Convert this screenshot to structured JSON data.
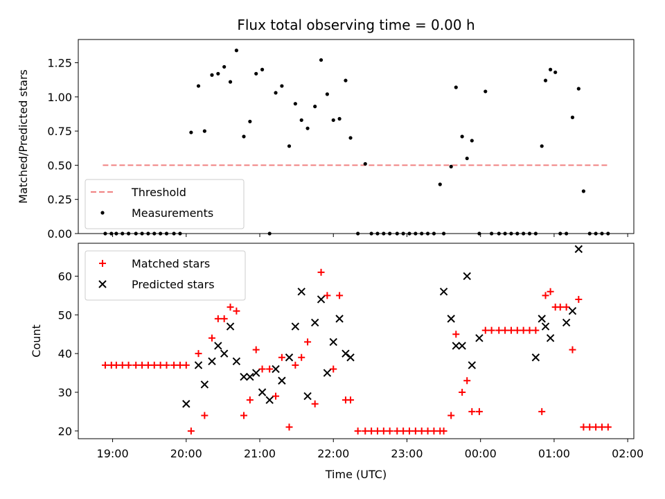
{
  "chart_data": [
    {
      "type": "scatter",
      "title": "Flux total observing time = 0.00 h",
      "xlabel": "",
      "ylabel": "Matched/Predicted stars",
      "xlim": [
        "18:32",
        "02:05"
      ],
      "ylim": [
        0,
        1.42
      ],
      "x_ticks": [
        "19:00",
        "20:00",
        "21:00",
        "22:00",
        "23:00",
        "00:00",
        "01:00",
        "02:00"
      ],
      "x_tick_labels_shown": false,
      "y_ticks": [
        0.0,
        0.25,
        0.5,
        0.75,
        1.0,
        1.25
      ],
      "y_tick_labels": [
        "0.00",
        "0.25",
        "0.50",
        "0.75",
        "1.00",
        "1.25"
      ],
      "legend": {
        "position": "lower-left"
      },
      "series": [
        {
          "name": "Threshold",
          "kind": "line",
          "style": "dashed",
          "color": "#f08080",
          "x": [
            "18:52",
            "01:45"
          ],
          "y": [
            0.5,
            0.5
          ]
        },
        {
          "name": "Measurements",
          "kind": "scatter",
          "marker": "dot",
          "color": "#000000",
          "x": [
            "18:54",
            "18:59",
            "19:03",
            "19:08",
            "19:13",
            "19:19",
            "19:24",
            "19:29",
            "19:34",
            "19:39",
            "19:44",
            "19:50",
            "19:55",
            "20:04",
            "20:10",
            "20:15",
            "20:21",
            "20:26",
            "20:31",
            "20:36",
            "20:41",
            "20:47",
            "20:52",
            "20:57",
            "21:02",
            "21:08",
            "21:13",
            "21:18",
            "21:24",
            "21:29",
            "21:34",
            "21:39",
            "21:45",
            "21:50",
            "21:55",
            "22:00",
            "22:05",
            "22:10",
            "22:14",
            "22:20",
            "22:26",
            "22:31",
            "22:36",
            "22:41",
            "22:46",
            "22:52",
            "22:57",
            "23:02",
            "23:07",
            "23:12",
            "23:17",
            "23:22",
            "23:27",
            "23:30",
            "23:36",
            "23:40",
            "23:45",
            "23:49",
            "23:53",
            "23:59",
            "00:04",
            "00:09",
            "00:15",
            "00:20",
            "00:25",
            "00:30",
            "00:35",
            "00:40",
            "00:45",
            "00:50",
            "00:53",
            "00:57",
            "01:01",
            "01:05",
            "01:10",
            "01:15",
            "01:20",
            "01:24",
            "01:29",
            "01:34",
            "01:39",
            "01:44"
          ],
          "y": [
            0.0,
            0.0,
            0.0,
            0.0,
            0.0,
            0.0,
            0.0,
            0.0,
            0.0,
            0.0,
            0.0,
            0.0,
            0.0,
            0.74,
            1.08,
            0.75,
            1.16,
            1.17,
            1.22,
            1.11,
            1.34,
            0.71,
            0.82,
            1.17,
            1.2,
            0.0,
            1.03,
            1.08,
            0.64,
            0.95,
            0.83,
            0.77,
            0.93,
            1.27,
            1.02,
            0.83,
            0.84,
            1.12,
            0.7,
            0.0,
            0.51,
            0.0,
            0.0,
            0.0,
            0.0,
            0.0,
            0.0,
            0.0,
            0.0,
            0.0,
            0.0,
            0.0,
            0.36,
            0.0,
            0.49,
            1.07,
            0.71,
            0.55,
            0.68,
            0.0,
            1.04,
            0.0,
            0.0,
            0.0,
            0.0,
            0.0,
            0.0,
            0.0,
            0.0,
            0.64,
            1.12,
            1.2,
            1.18,
            0.0,
            0.0,
            0.85,
            1.06,
            0.31,
            0.0,
            0.0,
            0.0,
            0.0
          ]
        }
      ]
    },
    {
      "type": "scatter",
      "title": "",
      "xlabel": "Time (UTC)",
      "ylabel": "Count",
      "xlim": [
        "18:32",
        "02:05"
      ],
      "ylim": [
        18,
        68.5
      ],
      "x_ticks": [
        "19:00",
        "20:00",
        "21:00",
        "22:00",
        "23:00",
        "00:00",
        "01:00",
        "02:00"
      ],
      "x_tick_labels": [
        "19:00",
        "20:00",
        "21:00",
        "22:00",
        "23:00",
        "00:00",
        "01:00",
        "02:00"
      ],
      "y_ticks": [
        20,
        30,
        40,
        50,
        60
      ],
      "y_tick_labels": [
        "20",
        "30",
        "40",
        "50",
        "60"
      ],
      "legend": {
        "position": "upper-left"
      },
      "series": [
        {
          "name": "Matched stars",
          "kind": "scatter",
          "marker": "plus",
          "color": "#ff0000",
          "x": [
            "18:54",
            "18:59",
            "19:03",
            "19:08",
            "19:13",
            "19:19",
            "19:24",
            "19:29",
            "19:34",
            "19:39",
            "19:44",
            "19:50",
            "19:55",
            "20:00",
            "20:04",
            "20:10",
            "20:15",
            "20:21",
            "20:26",
            "20:31",
            "20:36",
            "20:41",
            "20:47",
            "20:52",
            "20:57",
            "21:02",
            "21:08",
            "21:13",
            "21:18",
            "21:24",
            "21:29",
            "21:34",
            "21:39",
            "21:45",
            "21:50",
            "21:55",
            "22:00",
            "22:05",
            "22:10",
            "22:14",
            "22:20",
            "22:26",
            "22:31",
            "22:36",
            "22:41",
            "22:46",
            "22:52",
            "22:57",
            "23:02",
            "23:07",
            "23:12",
            "23:17",
            "23:22",
            "23:27",
            "23:30",
            "23:36",
            "23:40",
            "23:45",
            "23:49",
            "23:53",
            "23:59",
            "00:04",
            "00:09",
            "00:15",
            "00:20",
            "00:25",
            "00:30",
            "00:35",
            "00:40",
            "00:45",
            "00:50",
            "00:53",
            "00:57",
            "01:01",
            "01:05",
            "01:10",
            "01:15",
            "01:20",
            "01:24",
            "01:29",
            "01:34",
            "01:39",
            "01:44"
          ],
          "y": [
            37,
            37,
            37,
            37,
            37,
            37,
            37,
            37,
            37,
            37,
            37,
            37,
            37,
            37,
            20,
            40,
            24,
            44,
            49,
            49,
            52,
            51,
            24,
            28,
            41,
            36,
            36,
            29,
            39,
            21,
            37,
            39,
            43,
            27,
            61,
            55,
            36,
            55,
            28,
            28,
            20,
            20,
            20,
            20,
            20,
            20,
            20,
            20,
            20,
            20,
            20,
            20,
            20,
            20,
            20,
            24,
            45,
            30,
            33,
            25,
            25,
            46,
            46,
            46,
            46,
            46,
            46,
            46,
            46,
            46,
            25,
            55,
            56,
            52,
            52,
            52,
            41,
            54,
            21,
            21,
            21,
            21,
            21
          ]
        },
        {
          "name": "Predicted stars",
          "kind": "scatter",
          "marker": "x",
          "color": "#000000",
          "x": [
            "20:00",
            "20:10",
            "20:15",
            "20:21",
            "20:26",
            "20:31",
            "20:36",
            "20:41",
            "20:47",
            "20:52",
            "20:57",
            "21:02",
            "21:08",
            "21:13",
            "21:18",
            "21:24",
            "21:29",
            "21:34",
            "21:39",
            "21:45",
            "21:50",
            "21:55",
            "22:00",
            "22:05",
            "22:10",
            "22:14",
            "22:20",
            "23:30",
            "23:36",
            "23:40",
            "23:45",
            "23:49",
            "23:53",
            "23:59",
            "00:04",
            "00:45",
            "00:50",
            "00:53",
            "00:57",
            "01:01",
            "01:05",
            "01:10",
            "01:15",
            "01:20",
            "01:24",
            "01:29",
            "01:34"
          ],
          "y": [
            27,
            37,
            32,
            38,
            42,
            40,
            47,
            38,
            34,
            34,
            35,
            30,
            28,
            36,
            33,
            39,
            47,
            56,
            29,
            48,
            54,
            35,
            43,
            49,
            40,
            39,
            null,
            56,
            49,
            42,
            42,
            60,
            37,
            44,
            null,
            39,
            49,
            47,
            44,
            null,
            null,
            48,
            51,
            67,
            null,
            null,
            null
          ]
        }
      ]
    }
  ]
}
